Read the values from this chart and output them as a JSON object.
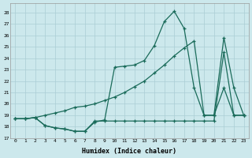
{
  "xlabel": "Humidex (Indice chaleur)",
  "bg_color": "#cce8ec",
  "line_color": "#1a6b5a",
  "grid_color": "#aacdd4",
  "xlim": [
    -0.5,
    23.5
  ],
  "ylim": [
    17.0,
    28.8
  ],
  "yticks": [
    17,
    18,
    19,
    20,
    21,
    22,
    23,
    24,
    25,
    26,
    27,
    28
  ],
  "xticks": [
    0,
    1,
    2,
    3,
    4,
    5,
    6,
    7,
    8,
    9,
    10,
    11,
    12,
    13,
    14,
    15,
    16,
    17,
    18,
    19,
    20,
    21,
    22,
    23
  ],
  "line_spike": [
    18.7,
    18.7,
    18.8,
    18.1,
    17.9,
    17.8,
    17.6,
    17.6,
    18.4,
    18.6,
    23.2,
    23.3,
    23.4,
    23.8,
    25.1,
    27.2,
    28.1,
    26.6,
    21.4,
    19.0,
    19.0,
    21.4,
    19.0,
    19.0
  ],
  "line_diag": [
    18.7,
    18.7,
    18.8,
    19.0,
    19.2,
    19.4,
    19.7,
    19.8,
    20.0,
    20.3,
    20.6,
    21.0,
    21.5,
    22.0,
    22.7,
    23.4,
    24.2,
    24.9,
    25.5,
    19.0,
    19.0,
    25.8,
    21.4,
    19.0
  ],
  "line_flat": [
    18.7,
    18.7,
    18.8,
    18.1,
    17.9,
    17.8,
    17.6,
    17.6,
    18.5,
    18.5,
    18.5,
    18.5,
    18.5,
    18.5,
    18.5,
    18.5,
    18.5,
    18.5,
    18.5,
    18.5,
    18.5,
    24.5,
    19.0,
    19.0
  ]
}
